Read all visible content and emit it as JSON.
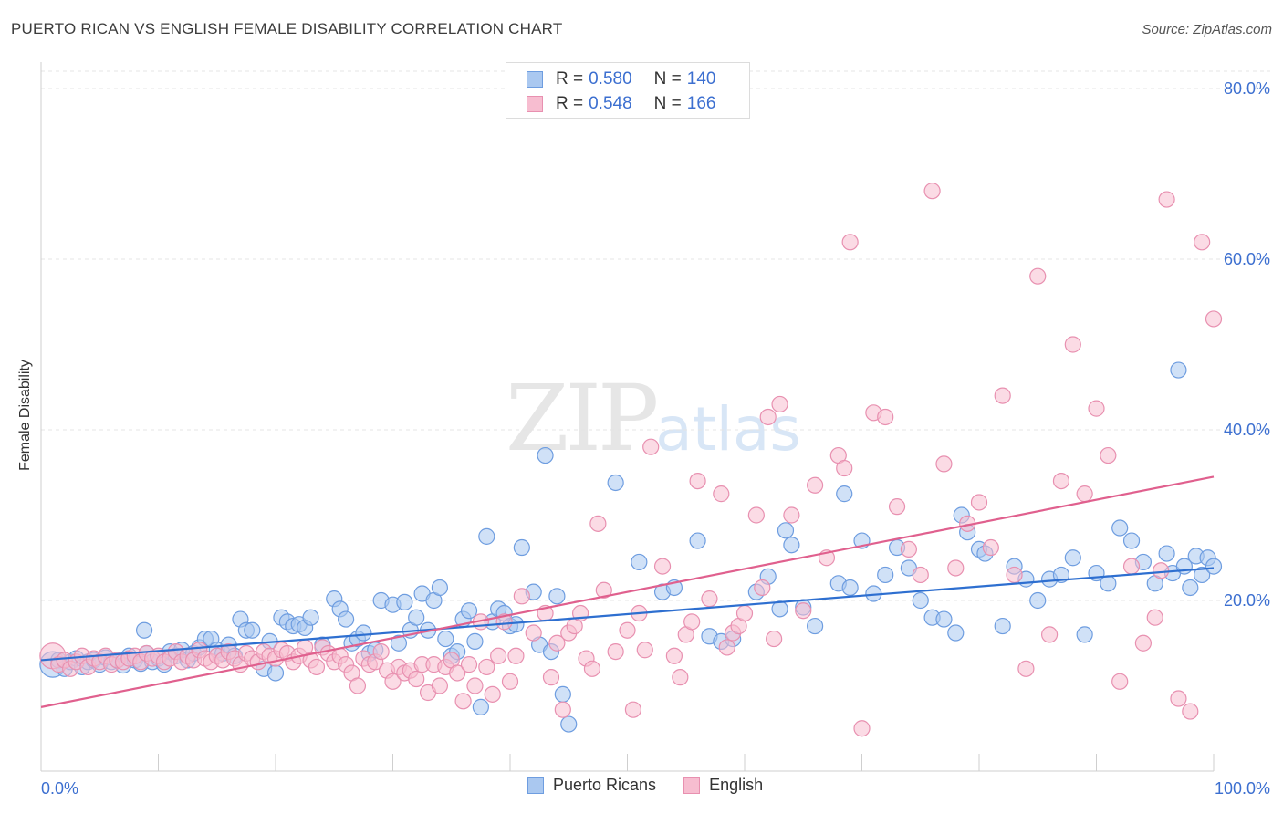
{
  "header": {
    "title": "PUERTO RICAN VS ENGLISH FEMALE DISABILITY CORRELATION CHART",
    "source": "Source: ZipAtlas.com"
  },
  "watermark": {
    "zip": "ZIP",
    "atlas": "atlas"
  },
  "legend": {
    "rows": [
      {
        "r_label": "R =",
        "r_value": "0.580",
        "n_label": "N =",
        "n_value": "140"
      },
      {
        "r_label": "R =",
        "r_value": "0.548",
        "n_label": "N =",
        "n_value": "166"
      }
    ]
  },
  "colors": {
    "blue_fill": "#aac8f0",
    "blue_stroke": "#6e9de0",
    "blue_line": "#2e6fd0",
    "pink_fill": "#f7bdd0",
    "pink_stroke": "#e890b0",
    "pink_line": "#e0608e",
    "tick_label": "#3c6fd0",
    "grid": "#e4e4e4"
  },
  "chart_data": {
    "type": "scatter",
    "title": "PUERTO RICAN VS ENGLISH FEMALE DISABILITY CORRELATION CHART",
    "xlabel": "",
    "ylabel": "Female Disability",
    "xlim": [
      0,
      100
    ],
    "ylim": [
      0,
      80
    ],
    "x_tick_labels": [
      "0.0%",
      "100.0%"
    ],
    "y_tick_labels": [
      "20.0%",
      "40.0%",
      "60.0%",
      "80.0%"
    ],
    "y_ticks": [
      20,
      40,
      60,
      80
    ],
    "grid": true,
    "legend_position": "bottom-center",
    "series": [
      {
        "name": "Puerto Ricans",
        "trend": {
          "x": [
            0,
            100
          ],
          "y": [
            13.0,
            23.8
          ]
        },
        "points": [
          [
            1,
            12.5
          ],
          [
            1.5,
            13
          ],
          [
            2,
            12
          ],
          [
            2.5,
            12.8
          ],
          [
            3,
            13.2
          ],
          [
            3.5,
            12.2
          ],
          [
            4,
            12.8
          ],
          [
            4.5,
            13
          ],
          [
            5,
            12.5
          ],
          [
            5.5,
            13.3
          ],
          [
            6,
            12.8
          ],
          [
            6.5,
            13
          ],
          [
            7,
            12.4
          ],
          [
            7.5,
            13.5
          ],
          [
            8,
            13
          ],
          [
            8.5,
            12.6
          ],
          [
            8.8,
            16.5
          ],
          [
            9,
            13.8
          ],
          [
            9.5,
            12.8
          ],
          [
            10,
            13.2
          ],
          [
            10.5,
            12.5
          ],
          [
            11,
            14
          ],
          [
            11.5,
            13.5
          ],
          [
            12,
            14.2
          ],
          [
            12.5,
            13
          ],
          [
            13,
            13.8
          ],
          [
            13.5,
            14.5
          ],
          [
            14,
            15.5
          ],
          [
            14.5,
            15.5
          ],
          [
            15,
            14.2
          ],
          [
            15.5,
            13.8
          ],
          [
            16,
            14.8
          ],
          [
            16.5,
            13.5
          ],
          [
            17,
            17.8
          ],
          [
            17.5,
            16.5
          ],
          [
            18,
            16.5
          ],
          [
            19,
            12
          ],
          [
            19.5,
            15.2
          ],
          [
            20,
            11.5
          ],
          [
            20.5,
            18
          ],
          [
            21,
            17.5
          ],
          [
            21.5,
            17
          ],
          [
            22,
            17.2
          ],
          [
            22.5,
            16.8
          ],
          [
            23,
            18
          ],
          [
            24,
            14.8
          ],
          [
            25,
            20.2
          ],
          [
            25.5,
            19
          ],
          [
            26,
            17.8
          ],
          [
            26.5,
            15
          ],
          [
            27,
            15.5
          ],
          [
            27.5,
            16.2
          ],
          [
            28,
            13.8
          ],
          [
            28.5,
            14.2
          ],
          [
            29,
            20
          ],
          [
            30,
            19.5
          ],
          [
            30.5,
            15
          ],
          [
            31,
            19.8
          ],
          [
            31.5,
            16.5
          ],
          [
            32,
            18
          ],
          [
            32.5,
            20.8
          ],
          [
            33,
            16.5
          ],
          [
            33.5,
            20
          ],
          [
            34,
            21.5
          ],
          [
            34.5,
            15.5
          ],
          [
            35,
            13.5
          ],
          [
            35.5,
            14
          ],
          [
            36,
            17.8
          ],
          [
            36.5,
            18.8
          ],
          [
            37,
            15.2
          ],
          [
            37.5,
            7.5
          ],
          [
            38,
            27.5
          ],
          [
            38.5,
            17.5
          ],
          [
            39,
            19
          ],
          [
            39.5,
            18.5
          ],
          [
            40,
            17
          ],
          [
            40.5,
            17.2
          ],
          [
            41,
            26.2
          ],
          [
            42,
            21
          ],
          [
            42.5,
            14.8
          ],
          [
            43,
            37
          ],
          [
            43.5,
            14
          ],
          [
            44,
            20.5
          ],
          [
            44.5,
            9
          ],
          [
            45,
            5.5
          ],
          [
            49,
            33.8
          ],
          [
            51,
            24.5
          ],
          [
            53,
            21
          ],
          [
            54,
            21.5
          ],
          [
            56,
            27
          ],
          [
            57,
            15.8
          ],
          [
            58,
            15.2
          ],
          [
            59,
            15.5
          ],
          [
            61,
            21
          ],
          [
            62,
            22.8
          ],
          [
            63,
            19
          ],
          [
            63.5,
            28.2
          ],
          [
            64,
            26.5
          ],
          [
            65,
            19.2
          ],
          [
            66,
            17
          ],
          [
            68,
            22
          ],
          [
            68.5,
            32.5
          ],
          [
            69,
            21.5
          ],
          [
            70,
            27
          ],
          [
            71,
            20.8
          ],
          [
            72,
            23
          ],
          [
            73,
            26.2
          ],
          [
            74,
            23.8
          ],
          [
            75,
            20
          ],
          [
            76,
            18
          ],
          [
            77,
            17.8
          ],
          [
            78,
            16.2
          ],
          [
            78.5,
            30
          ],
          [
            79,
            28
          ],
          [
            80,
            26
          ],
          [
            80.5,
            25.5
          ],
          [
            82,
            17
          ],
          [
            83,
            24
          ],
          [
            84,
            22.5
          ],
          [
            85,
            20
          ],
          [
            86,
            22.5
          ],
          [
            87,
            23
          ],
          [
            88,
            25
          ],
          [
            89,
            16
          ],
          [
            90,
            23.2
          ],
          [
            91,
            22
          ],
          [
            92,
            28.5
          ],
          [
            93,
            27
          ],
          [
            94,
            24.5
          ],
          [
            95,
            22
          ],
          [
            96,
            25.5
          ],
          [
            96.5,
            23.2
          ],
          [
            97,
            47
          ],
          [
            97.5,
            24
          ],
          [
            98,
            21.5
          ],
          [
            98.5,
            25.2
          ],
          [
            99,
            23
          ],
          [
            99.5,
            25
          ],
          [
            100,
            24
          ]
        ]
      },
      {
        "name": "English",
        "trend": {
          "x": [
            0,
            100
          ],
          "y": [
            7.5,
            34.5
          ]
        },
        "points": [
          [
            1,
            13.5
          ],
          [
            1.5,
            12.5
          ],
          [
            2,
            13
          ],
          [
            2.5,
            12
          ],
          [
            3,
            12.8
          ],
          [
            3.5,
            13.5
          ],
          [
            4,
            12.2
          ],
          [
            4.5,
            13.2
          ],
          [
            5,
            12.8
          ],
          [
            5.5,
            13.5
          ],
          [
            6,
            12.5
          ],
          [
            6.5,
            13
          ],
          [
            7,
            12.8
          ],
          [
            7.5,
            13.2
          ],
          [
            8,
            13.5
          ],
          [
            8.5,
            12.8
          ],
          [
            9,
            13.8
          ],
          [
            9.5,
            13.2
          ],
          [
            10,
            13.5
          ],
          [
            10.5,
            12.8
          ],
          [
            11,
            13.2
          ],
          [
            11.5,
            14
          ],
          [
            12,
            12.8
          ],
          [
            12.5,
            13.5
          ],
          [
            13,
            13
          ],
          [
            13.5,
            14.2
          ],
          [
            14,
            13.2
          ],
          [
            14.5,
            12.8
          ],
          [
            15,
            13.5
          ],
          [
            15.5,
            13
          ],
          [
            16,
            14
          ],
          [
            16.5,
            13.2
          ],
          [
            17,
            12.5
          ],
          [
            17.5,
            13.8
          ],
          [
            18,
            13.2
          ],
          [
            18.5,
            12.8
          ],
          [
            19,
            14
          ],
          [
            19.5,
            13.5
          ],
          [
            20,
            13.2
          ],
          [
            20.5,
            14.2
          ],
          [
            21,
            13.8
          ],
          [
            21.5,
            12.8
          ],
          [
            22,
            13.5
          ],
          [
            22.5,
            14.5
          ],
          [
            23,
            13
          ],
          [
            23.5,
            12.2
          ],
          [
            24,
            14.5
          ],
          [
            24.5,
            13.8
          ],
          [
            25,
            12.8
          ],
          [
            25.5,
            13.5
          ],
          [
            26,
            12.5
          ],
          [
            26.5,
            11.5
          ],
          [
            27,
            10
          ],
          [
            27.5,
            13.2
          ],
          [
            28,
            12.5
          ],
          [
            28.5,
            12.8
          ],
          [
            29,
            14
          ],
          [
            29.5,
            11.8
          ],
          [
            30,
            10.5
          ],
          [
            30.5,
            12.2
          ],
          [
            31,
            11.5
          ],
          [
            31.5,
            11.8
          ],
          [
            32,
            10.8
          ],
          [
            32.5,
            12.5
          ],
          [
            33,
            9.2
          ],
          [
            33.5,
            12.5
          ],
          [
            34,
            10
          ],
          [
            34.5,
            12.2
          ],
          [
            35,
            13
          ],
          [
            35.5,
            11.5
          ],
          [
            36,
            8.2
          ],
          [
            36.5,
            12.5
          ],
          [
            37,
            10
          ],
          [
            37.5,
            17.5
          ],
          [
            38,
            12.2
          ],
          [
            38.5,
            9
          ],
          [
            39,
            13.5
          ],
          [
            39.5,
            17.5
          ],
          [
            40,
            10.5
          ],
          [
            40.5,
            13.5
          ],
          [
            41,
            20.5
          ],
          [
            42,
            16.2
          ],
          [
            43,
            18.5
          ],
          [
            43.5,
            11
          ],
          [
            44,
            15
          ],
          [
            44.5,
            7.2
          ],
          [
            45,
            16.2
          ],
          [
            45.5,
            17
          ],
          [
            46,
            18.5
          ],
          [
            46.5,
            13.2
          ],
          [
            47,
            12
          ],
          [
            47.5,
            29
          ],
          [
            48,
            21.2
          ],
          [
            49,
            14
          ],
          [
            50,
            16.5
          ],
          [
            50.5,
            7.2
          ],
          [
            51,
            18.5
          ],
          [
            51.5,
            14.2
          ],
          [
            52,
            38
          ],
          [
            53,
            24
          ],
          [
            54,
            13.5
          ],
          [
            54.5,
            11
          ],
          [
            55,
            16
          ],
          [
            55.5,
            17.5
          ],
          [
            56,
            34
          ],
          [
            57,
            20.2
          ],
          [
            58,
            32.5
          ],
          [
            58.5,
            14.5
          ],
          [
            59,
            16.2
          ],
          [
            59.5,
            17
          ],
          [
            60,
            18.5
          ],
          [
            61,
            30
          ],
          [
            61.5,
            21.5
          ],
          [
            62,
            41.5
          ],
          [
            62.5,
            15.5
          ],
          [
            63,
            43
          ],
          [
            64,
            30
          ],
          [
            65,
            18.8
          ],
          [
            66,
            33.5
          ],
          [
            67,
            25
          ],
          [
            68,
            37
          ],
          [
            68.5,
            35.5
          ],
          [
            69,
            62
          ],
          [
            70,
            5
          ],
          [
            71,
            42
          ],
          [
            72,
            41.5
          ],
          [
            73,
            31
          ],
          [
            74,
            26
          ],
          [
            75,
            23
          ],
          [
            76,
            68
          ],
          [
            77,
            36
          ],
          [
            78,
            23.8
          ],
          [
            79,
            29
          ],
          [
            80,
            31.5
          ],
          [
            81,
            26.2
          ],
          [
            82,
            44
          ],
          [
            83,
            23
          ],
          [
            84,
            12
          ],
          [
            85,
            58
          ],
          [
            86,
            16
          ],
          [
            87,
            34
          ],
          [
            88,
            50
          ],
          [
            89,
            32.5
          ],
          [
            90,
            42.5
          ],
          [
            91,
            37
          ],
          [
            92,
            10.5
          ],
          [
            93,
            24
          ],
          [
            94,
            15
          ],
          [
            95,
            18
          ],
          [
            95.5,
            23.5
          ],
          [
            96,
            67
          ],
          [
            97,
            8.5
          ],
          [
            98,
            7
          ],
          [
            99,
            62
          ],
          [
            100,
            53
          ]
        ]
      }
    ]
  }
}
